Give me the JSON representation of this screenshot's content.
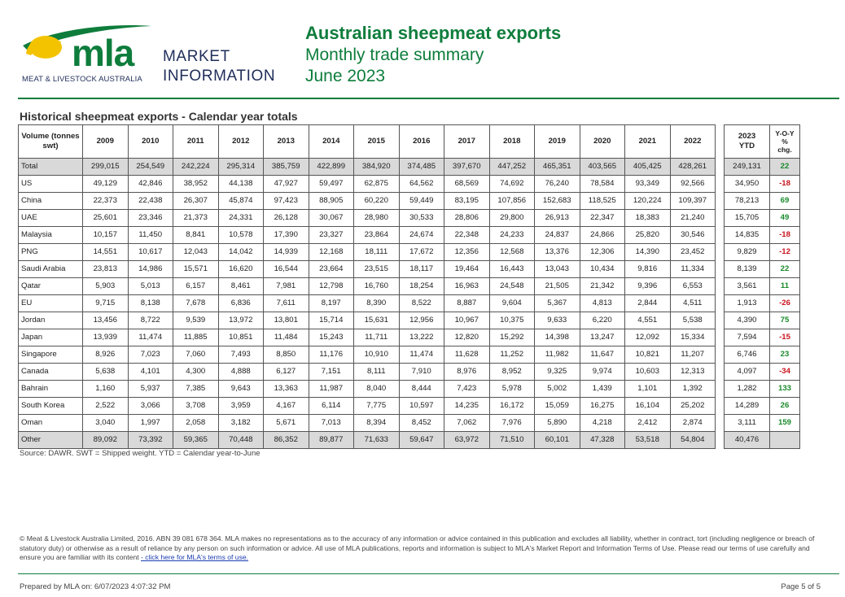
{
  "logo": {
    "mark": "mla",
    "tagline": "MEAT & LIVESTOCK AUSTRALIA",
    "market_line1": "MARKET",
    "market_line2": "INFORMATION",
    "colors": {
      "green": "#0e7d3c",
      "yellow": "#f3c300",
      "navy": "#1f2e5a"
    }
  },
  "header": {
    "title": "Australian sheepmeat exports",
    "subtitle": "Monthly trade summary",
    "period": "June 2023"
  },
  "section_title": "Historical sheepmeat exports - Calendar year totals",
  "table": {
    "corner_label": "Volume (tonnes swt)",
    "years": [
      "2009",
      "2010",
      "2011",
      "2012",
      "2013",
      "2014",
      "2015",
      "2016",
      "2017",
      "2018",
      "2019",
      "2020",
      "2021",
      "2022"
    ],
    "ytd_header": [
      "2023",
      "YTD"
    ],
    "yoy_header": [
      "Y-O-Y",
      "%",
      "chg."
    ],
    "rows": [
      {
        "label": "Total",
        "values": [
          "299,015",
          "254,549",
          "242,224",
          "295,314",
          "385,759",
          "422,899",
          "384,920",
          "374,485",
          "397,670",
          "447,252",
          "465,351",
          "403,565",
          "405,425",
          "428,261"
        ],
        "ytd": "249,131",
        "chg": "22",
        "sign": "pos"
      },
      {
        "label": "US",
        "values": [
          "49,129",
          "42,846",
          "38,952",
          "44,138",
          "47,927",
          "59,497",
          "62,875",
          "64,562",
          "68,569",
          "74,692",
          "76,240",
          "78,584",
          "93,349",
          "92,566"
        ],
        "ytd": "34,950",
        "chg": "-18",
        "sign": "neg"
      },
      {
        "label": "China",
        "values": [
          "22,373",
          "22,438",
          "26,307",
          "45,874",
          "97,423",
          "88,905",
          "60,220",
          "59,449",
          "83,195",
          "107,856",
          "152,683",
          "118,525",
          "120,224",
          "109,397"
        ],
        "ytd": "78,213",
        "chg": "69",
        "sign": "pos"
      },
      {
        "label": "UAE",
        "values": [
          "25,601",
          "23,346",
          "21,373",
          "24,331",
          "26,128",
          "30,067",
          "28,980",
          "30,533",
          "28,806",
          "29,800",
          "26,913",
          "22,347",
          "18,383",
          "21,240"
        ],
        "ytd": "15,705",
        "chg": "49",
        "sign": "pos"
      },
      {
        "label": "Malaysia",
        "values": [
          "10,157",
          "11,450",
          "8,841",
          "10,578",
          "17,390",
          "23,327",
          "23,864",
          "24,674",
          "22,348",
          "24,233",
          "24,837",
          "24,866",
          "25,820",
          "30,546"
        ],
        "ytd": "14,835",
        "chg": "-18",
        "sign": "neg"
      },
      {
        "label": "PNG",
        "values": [
          "14,551",
          "10,617",
          "12,043",
          "14,042",
          "14,939",
          "12,168",
          "18,111",
          "17,672",
          "12,356",
          "12,568",
          "13,376",
          "12,306",
          "14,390",
          "23,452"
        ],
        "ytd": "9,829",
        "chg": "-12",
        "sign": "neg"
      },
      {
        "label": "Saudi Arabia",
        "values": [
          "23,813",
          "14,986",
          "15,571",
          "16,620",
          "16,544",
          "23,664",
          "23,515",
          "18,117",
          "19,464",
          "16,443",
          "13,043",
          "10,434",
          "9,816",
          "11,334"
        ],
        "ytd": "8,139",
        "chg": "22",
        "sign": "pos"
      },
      {
        "label": "Qatar",
        "values": [
          "5,903",
          "5,013",
          "6,157",
          "8,461",
          "7,981",
          "12,798",
          "16,760",
          "18,254",
          "16,963",
          "24,548",
          "21,505",
          "21,342",
          "9,396",
          "6,553"
        ],
        "ytd": "3,561",
        "chg": "11",
        "sign": "pos"
      },
      {
        "label": "EU",
        "values": [
          "9,715",
          "8,138",
          "7,678",
          "6,836",
          "7,611",
          "8,197",
          "8,390",
          "8,522",
          "8,887",
          "9,604",
          "5,367",
          "4,813",
          "2,844",
          "4,511"
        ],
        "ytd": "1,913",
        "chg": "-26",
        "sign": "neg"
      },
      {
        "label": "Jordan",
        "values": [
          "13,456",
          "8,722",
          "9,539",
          "13,972",
          "13,801",
          "15,714",
          "15,631",
          "12,956",
          "10,967",
          "10,375",
          "9,633",
          "6,220",
          "4,551",
          "5,538"
        ],
        "ytd": "4,390",
        "chg": "75",
        "sign": "pos"
      },
      {
        "label": "Japan",
        "values": [
          "13,939",
          "11,474",
          "11,885",
          "10,851",
          "11,484",
          "15,243",
          "11,711",
          "13,222",
          "12,820",
          "15,292",
          "14,398",
          "13,247",
          "12,092",
          "15,334"
        ],
        "ytd": "7,594",
        "chg": "-15",
        "sign": "neg"
      },
      {
        "label": "Singapore",
        "values": [
          "8,926",
          "7,023",
          "7,060",
          "7,493",
          "8,850",
          "11,176",
          "10,910",
          "11,474",
          "11,628",
          "11,252",
          "11,982",
          "11,647",
          "10,821",
          "11,207"
        ],
        "ytd": "6,746",
        "chg": "23",
        "sign": "pos"
      },
      {
        "label": "Canada",
        "values": [
          "5,638",
          "4,101",
          "4,300",
          "4,888",
          "6,127",
          "7,151",
          "8,111",
          "7,910",
          "8,976",
          "8,952",
          "9,325",
          "9,974",
          "10,603",
          "12,313"
        ],
        "ytd": "4,097",
        "chg": "-34",
        "sign": "neg"
      },
      {
        "label": "Bahrain",
        "values": [
          "1,160",
          "5,937",
          "7,385",
          "9,643",
          "13,363",
          "11,987",
          "8,040",
          "8,444",
          "7,423",
          "5,978",
          "5,002",
          "1,439",
          "1,101",
          "1,392"
        ],
        "ytd": "1,282",
        "chg": "133",
        "sign": "pos"
      },
      {
        "label": "South Korea",
        "values": [
          "2,522",
          "3,066",
          "3,708",
          "3,959",
          "4,167",
          "6,114",
          "7,775",
          "10,597",
          "14,235",
          "16,172",
          "15,059",
          "16,275",
          "16,104",
          "25,202"
        ],
        "ytd": "14,289",
        "chg": "26",
        "sign": "pos"
      },
      {
        "label": "Oman",
        "values": [
          "3,040",
          "1,997",
          "2,058",
          "3,182",
          "5,671",
          "7,013",
          "8,394",
          "8,452",
          "7,062",
          "7,976",
          "5,890",
          "4,218",
          "2,412",
          "2,874"
        ],
        "ytd": "3,111",
        "chg": "159",
        "sign": "pos"
      },
      {
        "label": "Other",
        "values": [
          "89,092",
          "73,392",
          "59,365",
          "70,448",
          "86,352",
          "89,877",
          "71,633",
          "59,647",
          "63,972",
          "71,510",
          "60,101",
          "47,328",
          "53,518",
          "54,804"
        ],
        "ytd": "40,476",
        "chg": "",
        "sign": ""
      }
    ]
  },
  "source_note": "Source: DAWR. SWT = Shipped weight. YTD = Calendar year-to-June",
  "copyright": {
    "text": "© Meat & Livestock Australia Limited, 2016. ABN 39 081 678 364. MLA makes no representations as to the accuracy of any information or advice contained in this publication and excludes all liability, whether in contract, tort (including negligence or breach of statutory duty) or otherwise as a result of reliance by any person on such information or advice. All use of MLA publications, reports and information is subject to MLA's Market Report and Information Terms of Use. Please read our terms of use carefully and ensure you are familiar with its content ",
    "link": "- click here for MLA's terms of use."
  },
  "footer": {
    "prepared": "Prepared by MLA on: 6/07/2023 4:07:32 PM",
    "page": "Page 5 of 5"
  }
}
